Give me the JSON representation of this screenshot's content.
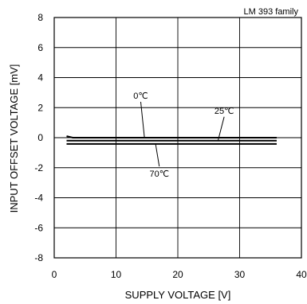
{
  "chart_data": {
    "type": "line",
    "title": "",
    "family_label": "LM 393 family",
    "xlabel": "SUPPLY VOLTAGE [V]",
    "ylabel": "INPUT OFFSET VOLTAGE [mV]",
    "xlim": [
      0,
      40
    ],
    "ylim": [
      -8,
      8
    ],
    "xticks": [
      0,
      10,
      20,
      30,
      40
    ],
    "yticks": [
      8,
      6,
      4,
      2,
      0,
      -2,
      -4,
      -6,
      -8
    ],
    "grid": true,
    "series": [
      {
        "name": "0℃",
        "x": [
          2,
          3,
          36
        ],
        "y": [
          0.1,
          0.0,
          0.0
        ]
      },
      {
        "name": "25℃",
        "x": [
          2,
          36
        ],
        "y": [
          -0.2,
          -0.2
        ]
      },
      {
        "name": "70℃",
        "x": [
          2,
          36
        ],
        "y": [
          -0.42,
          -0.42
        ]
      }
    ],
    "annotations": [
      {
        "text": "0℃",
        "series": "0℃",
        "text_at": [
          14,
          2.6
        ],
        "point_at": [
          14.6,
          0.0
        ]
      },
      {
        "text": "25℃",
        "series": "25℃",
        "text_at": [
          27.5,
          1.6
        ],
        "point_at": [
          26.5,
          -0.2
        ]
      },
      {
        "text": "70℃",
        "series": "70℃",
        "text_at": [
          17,
          -2.6
        ],
        "point_at": [
          16.4,
          -0.42
        ]
      }
    ]
  }
}
